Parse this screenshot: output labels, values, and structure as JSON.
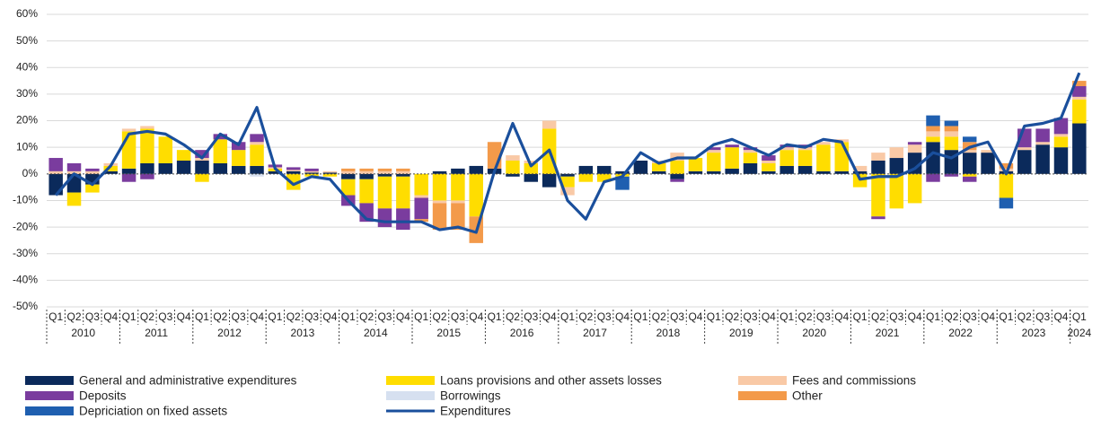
{
  "chart_data": {
    "type": "bar",
    "stacked": true,
    "categories": [
      "Q1",
      "Q2",
      "Q3",
      "Q4",
      "Q1",
      "Q2",
      "Q3",
      "Q4",
      "Q1",
      "Q2",
      "Q3",
      "Q4",
      "Q1",
      "Q2",
      "Q3",
      "Q4",
      "Q1",
      "Q2",
      "Q3",
      "Q4",
      "Q1",
      "Q2",
      "Q3",
      "Q4",
      "Q1",
      "Q2",
      "Q3",
      "Q4",
      "Q1",
      "Q2",
      "Q3",
      "Q4",
      "Q1",
      "Q2",
      "Q3",
      "Q4",
      "Q1",
      "Q2",
      "Q3",
      "Q4",
      "Q1",
      "Q2",
      "Q3",
      "Q4",
      "Q1",
      "Q2",
      "Q3",
      "Q4",
      "Q1",
      "Q2",
      "Q3",
      "Q4",
      "Q1",
      "Q2",
      "Q3",
      "Q4",
      "Q1"
    ],
    "years": [
      "2010",
      "2011",
      "2012",
      "2013",
      "2014",
      "2015",
      "2016",
      "2017",
      "2018",
      "2019",
      "2020",
      "2021",
      "2022",
      "2023",
      "2024"
    ],
    "ylim": [
      -50,
      60
    ],
    "yticks": [
      {
        "value": -50,
        "label": "-50%"
      },
      {
        "value": -40,
        "label": "-40%"
      },
      {
        "value": -30,
        "label": "-30%"
      },
      {
        "value": -20,
        "label": "-20%"
      },
      {
        "value": -10,
        "label": "-10%"
      },
      {
        "value": 0,
        "label": "0%"
      },
      {
        "value": 10,
        "label": "10%"
      },
      {
        "value": 20,
        "label": "20%"
      },
      {
        "value": 30,
        "label": "30%"
      },
      {
        "value": 40,
        "label": "40%"
      },
      {
        "value": 50,
        "label": "50%"
      },
      {
        "value": 60,
        "label": "60%"
      }
    ],
    "grid": true,
    "series": [
      {
        "name": "General and administrative expenditures",
        "color": "#0b2a5b",
        "values": [
          -8,
          -7,
          -4,
          1,
          2,
          4,
          4,
          5,
          5,
          4,
          3,
          3,
          1,
          1,
          0.5,
          0.5,
          -2,
          -2,
          -1,
          -1,
          0,
          1,
          2,
          3,
          2,
          -1,
          -3,
          -5,
          -1,
          3,
          3,
          1,
          5,
          1,
          -2,
          1,
          1,
          2,
          4,
          1,
          3,
          3,
          1,
          1,
          1,
          5,
          6,
          8,
          12,
          9,
          8,
          8,
          1,
          9,
          11,
          10,
          19
        ]
      },
      {
        "name": "Loans provisions and other assets losses",
        "color": "#ffdd00",
        "values": [
          0,
          -5,
          -3,
          2,
          14,
          13,
          10,
          4,
          -3,
          9,
          6,
          8,
          1,
          -6,
          -1,
          -1,
          -6,
          -9,
          -12,
          -12,
          -8,
          -10,
          -10,
          -16,
          0,
          5,
          4,
          17,
          -4,
          -3,
          -3,
          -1,
          0,
          3,
          5,
          5,
          7,
          8,
          4,
          3,
          6,
          6,
          10,
          11,
          -5,
          -16,
          -13,
          -11,
          2,
          5,
          -1,
          0,
          -9,
          0,
          0,
          4,
          9
        ]
      },
      {
        "name": "Fees and commissions",
        "color": "#f9c9a6",
        "values": [
          1,
          1,
          1,
          1,
          1,
          1,
          0,
          0,
          1,
          0,
          0,
          1,
          0.5,
          0.5,
          0.5,
          0.5,
          1,
          1,
          1,
          1,
          -1,
          -1,
          -1,
          0,
          0,
          2,
          1,
          3,
          -3,
          0,
          0,
          0,
          0,
          1,
          3,
          0,
          1,
          0,
          1,
          1,
          1,
          1,
          1,
          1,
          2,
          3,
          4,
          3,
          2,
          2,
          1,
          1,
          1,
          1,
          1,
          1,
          1
        ]
      },
      {
        "name": "Deposits",
        "color": "#7a3c9e",
        "values": [
          5,
          3,
          1,
          0,
          -3,
          -2,
          0,
          0,
          3,
          2,
          3,
          3,
          1,
          1,
          1,
          0,
          -4,
          -7,
          -7,
          -8,
          -8,
          0,
          0,
          0,
          0,
          0,
          0,
          0,
          0,
          0,
          0,
          0,
          0,
          0,
          -1,
          0,
          1,
          1,
          1,
          2,
          1,
          1,
          0,
          0,
          0,
          -1,
          0,
          1,
          -3,
          -1,
          -2,
          0,
          0,
          7,
          5,
          6,
          4
        ]
      },
      {
        "name": "Borrowings",
        "color": "#d6e0f0",
        "values": [
          0,
          0,
          0,
          0,
          0,
          0,
          0,
          0,
          0,
          0,
          0,
          -1,
          0,
          0,
          0,
          0,
          0,
          0,
          0,
          0,
          0,
          0,
          0,
          0,
          0,
          0,
          0,
          0,
          0,
          0,
          0,
          0,
          0,
          0,
          0,
          0,
          0,
          0,
          0,
          0,
          0,
          0,
          0,
          0,
          0,
          0,
          0,
          0,
          0,
          0,
          0,
          0,
          0,
          0,
          0,
          0,
          0
        ]
      },
      {
        "name": "Other",
        "color": "#f39a4a",
        "values": [
          0,
          0,
          0,
          0,
          0,
          0,
          0,
          0,
          0,
          0,
          0,
          0,
          0,
          0,
          0,
          0,
          1,
          1,
          1,
          1,
          -1,
          -10,
          -10,
          -10,
          10,
          0,
          0,
          0,
          0,
          0,
          0,
          0,
          0,
          0,
          0,
          0,
          0,
          0,
          0,
          0,
          0,
          0,
          0,
          0,
          0,
          0,
          0,
          0,
          2,
          2,
          3,
          0,
          2,
          0,
          0,
          0,
          2
        ]
      },
      {
        "name": "Depriciation on fixed assets",
        "color": "#1f5fb0",
        "values": [
          0,
          0,
          0,
          0,
          0,
          0,
          0,
          0,
          0,
          0,
          0,
          0,
          0,
          0,
          0,
          0,
          0,
          0,
          0,
          0,
          0,
          0,
          0,
          0,
          0,
          0,
          0,
          0,
          0,
          0,
          0,
          -5,
          0,
          0,
          0,
          0,
          0,
          0,
          0,
          0,
          0,
          0,
          0,
          0,
          0,
          0,
          0,
          0,
          4,
          2,
          2,
          0,
          -4,
          0,
          0,
          0,
          0
        ]
      },
      {
        "name": "Expenditures",
        "color": "#1a4f9c",
        "kind": "line",
        "values": [
          -8,
          0,
          -4,
          3,
          15,
          16,
          15,
          11,
          6,
          15,
          11,
          25,
          2,
          -4,
          -1,
          -2,
          -10,
          -17,
          -18,
          -18,
          -18,
          -21,
          -20,
          -22,
          1,
          19,
          3,
          9,
          -10,
          -17,
          -3,
          -1,
          8,
          4,
          6,
          6,
          11,
          13,
          10,
          7,
          11,
          10,
          13,
          12,
          -2,
          -1,
          -1,
          2,
          8,
          6,
          10,
          12,
          0,
          18,
          19,
          21,
          38
        ]
      }
    ]
  }
}
